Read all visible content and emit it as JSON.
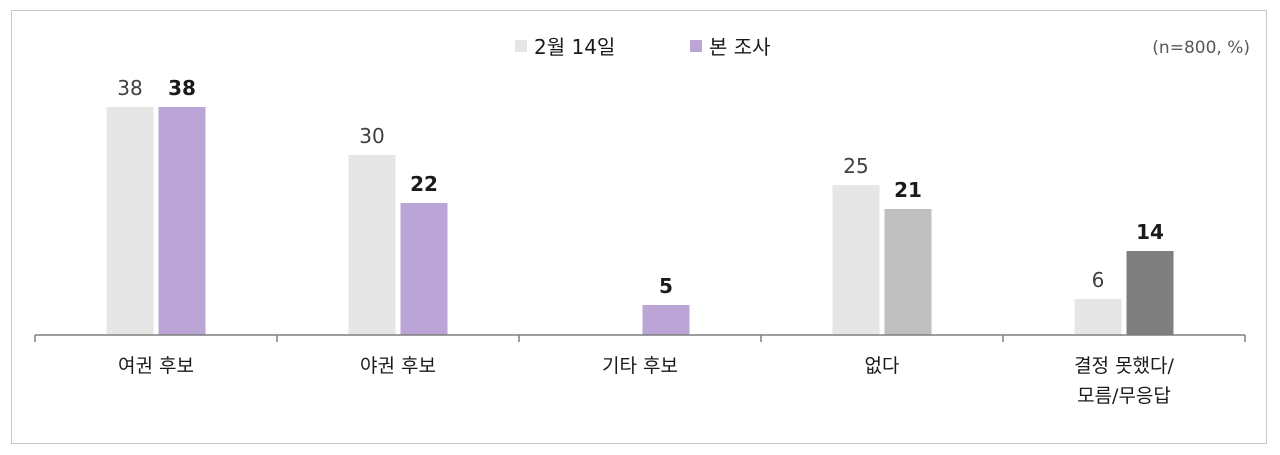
{
  "chart_data": {
    "type": "bar",
    "note": "(n=800, %)",
    "categories": [
      [
        "여권 후보"
      ],
      [
        "야권 후보"
      ],
      [
        "기타 후보"
      ],
      [
        "없다"
      ],
      [
        "결정 못했다/",
        "모름/무응답"
      ]
    ],
    "series": [
      {
        "name": "2월 14일",
        "values": [
          38,
          30,
          null,
          25,
          6
        ]
      },
      {
        "name": "본 조사",
        "values": [
          38,
          22,
          5,
          21,
          14
        ]
      }
    ],
    "ylim": [
      0,
      40
    ],
    "legend_position": "top-center",
    "grid": false
  },
  "colors": {
    "prev": "#e6e6e6",
    "current": "#bba5d6",
    "current_variants": [
      "#bba5d6",
      "#bba5d6",
      "#bba5d6",
      "#bfbfbf",
      "#7f7f7f"
    ],
    "axis": "#7f7f7f"
  }
}
